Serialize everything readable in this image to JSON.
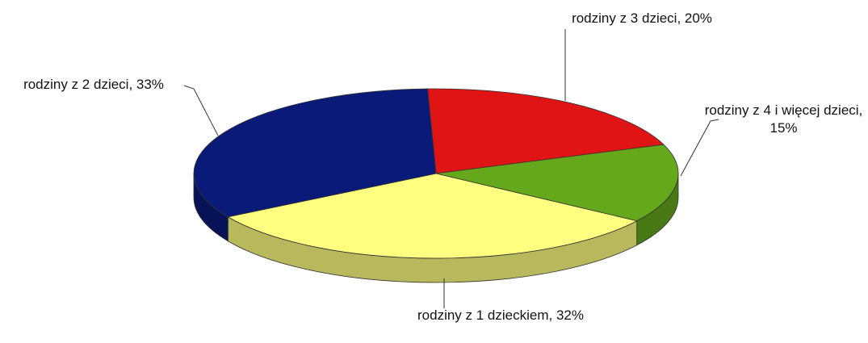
{
  "chart_data": {
    "type": "pie",
    "categories": [
      "rodziny z 3 dzieci",
      "rodziny z 4 i więcej dzieci",
      "rodziny z 1 dzieckiem",
      "rodziny z 2 dzieci"
    ],
    "values": [
      20,
      15,
      32,
      33
    ],
    "value_labels": [
      "rodziny z 3 dzieci, 20%",
      "rodziny z 4 i więcej dzieci, 15%",
      "rodziny z 1 dzieckiem, 32%",
      "rodziny z 2 dzieci, 33%"
    ],
    "colors": [
      "#e01414",
      "#66a81c",
      "#ffff80",
      "#0a1a78"
    ]
  }
}
